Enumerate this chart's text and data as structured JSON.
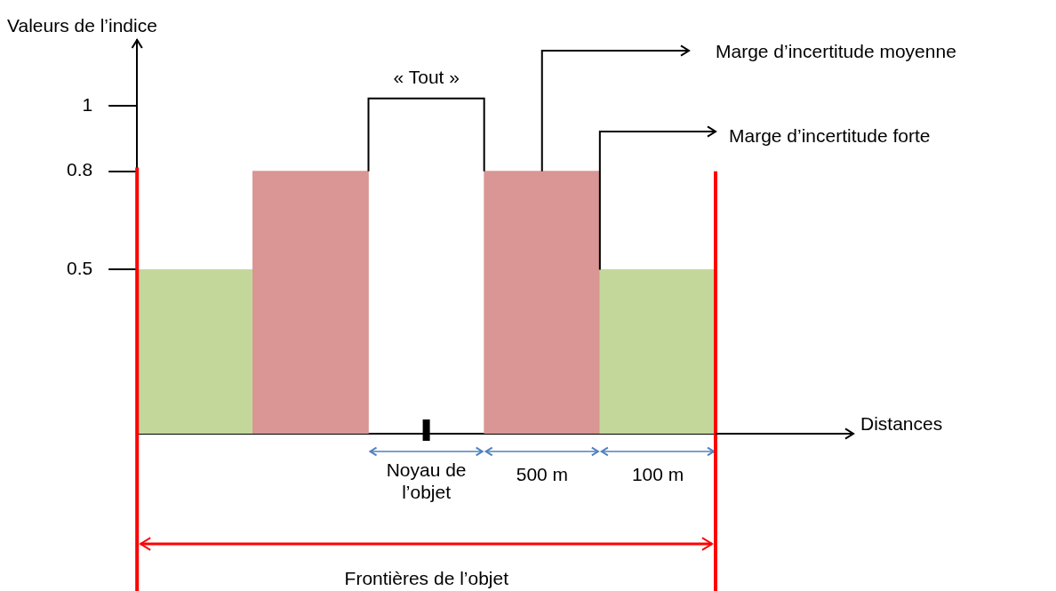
{
  "chart_data": {
    "type": "bar",
    "ylabel": "Valeurs de l’indice",
    "categories": [
      null,
      null,
      null,
      null,
      null
    ],
    "values": [
      0.5,
      0.8,
      null,
      0.8,
      0.5
    ],
    "colors": [
      "#c4d79b",
      "#d99694",
      "#ffffff",
      "#d99694",
      "#c4d79b"
    ],
    "ylim": [
      0,
      1.2
    ],
    "yticks": [
      0.5,
      0.8,
      1
    ],
    "tick_labels": "y",
    "annotations": [
      "« Tout »",
      "Marge d’incertitude  moyenne",
      "Marge d’incertitude  forte",
      "Noyau de l’objet",
      "500 m",
      "100 m",
      "Frontières de l’objet",
      "Distances"
    ]
  }
}
